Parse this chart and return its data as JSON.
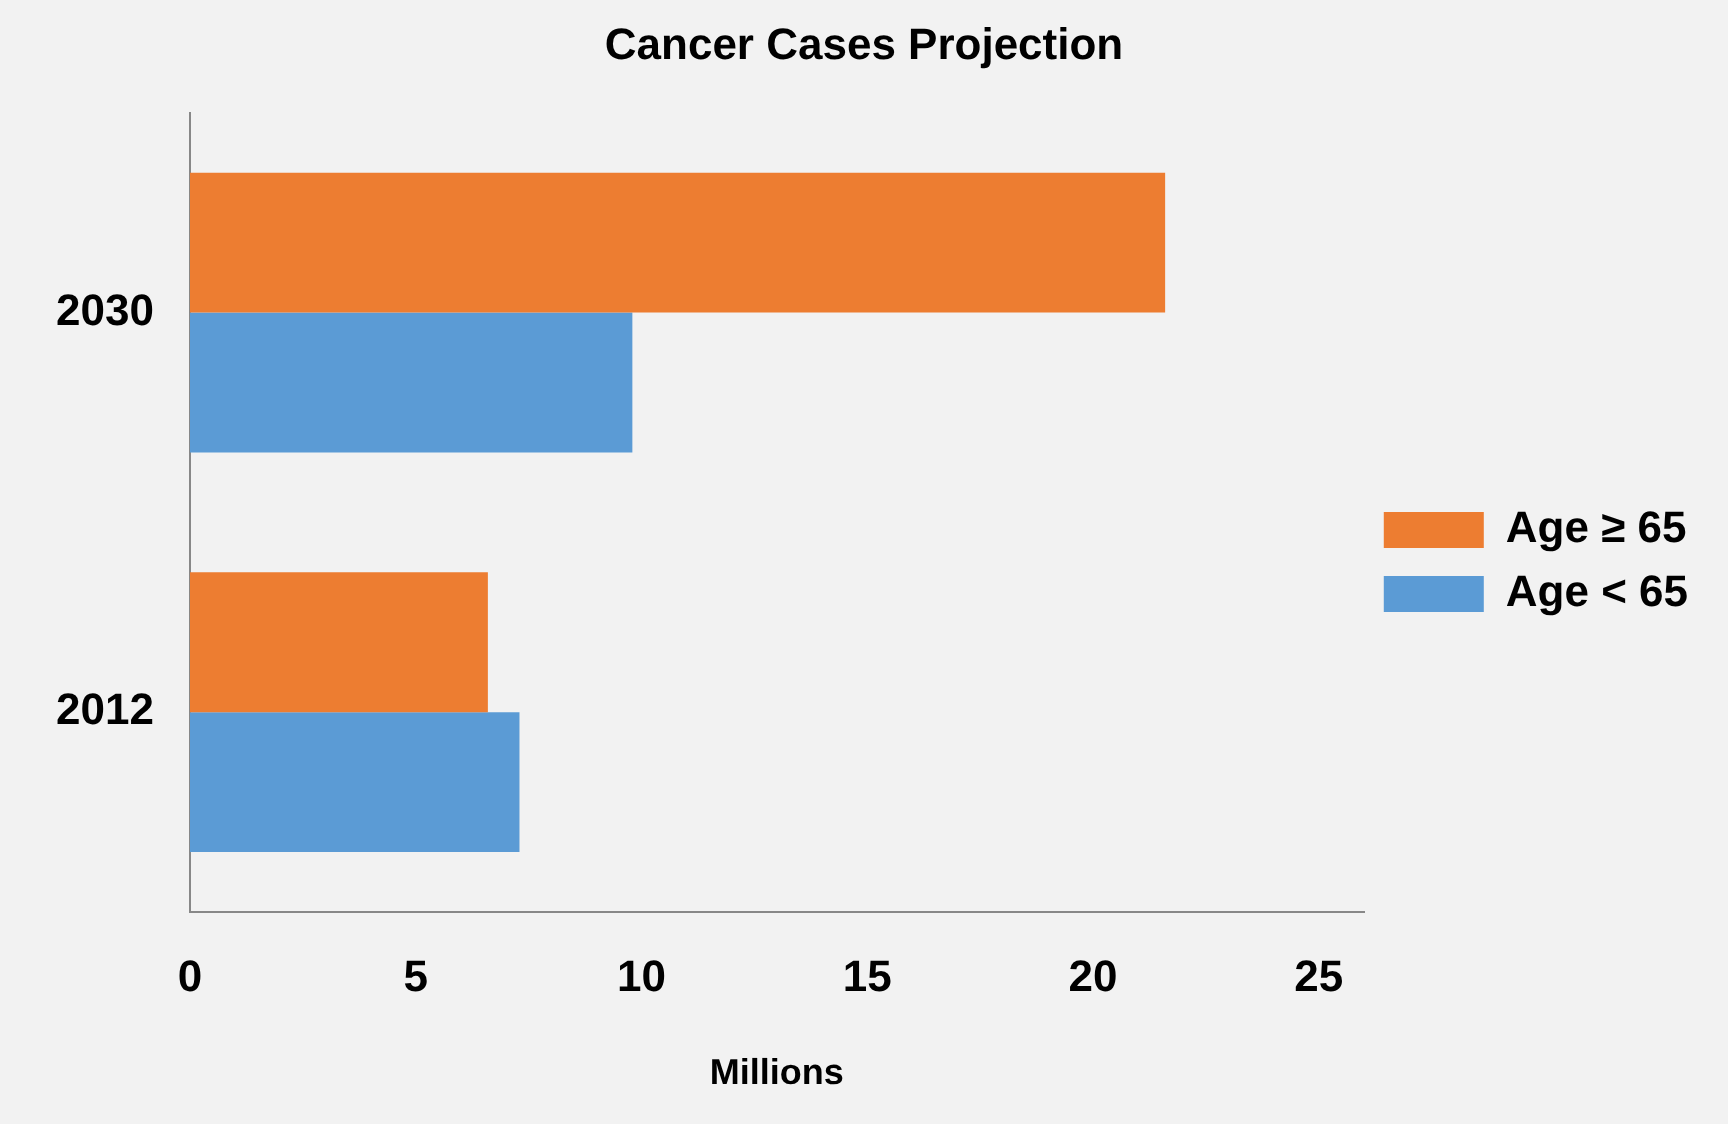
{
  "chart_data": {
    "type": "bar",
    "orientation": "horizontal",
    "title": "Cancer Cases Projection",
    "xlabel": "Millions",
    "categories": [
      "2030",
      "2012"
    ],
    "series": [
      {
        "name": "Age ≥ 65",
        "color": "#ed7d31",
        "values": [
          21.6,
          6.6
        ]
      },
      {
        "name": "Age < 65",
        "color": "#5b9bd5",
        "values": [
          9.8,
          7.3
        ]
      }
    ],
    "xlim": [
      0,
      26
    ],
    "xticks": [
      0,
      5,
      10,
      15,
      20,
      25
    ],
    "grid": false,
    "legend": "right"
  }
}
